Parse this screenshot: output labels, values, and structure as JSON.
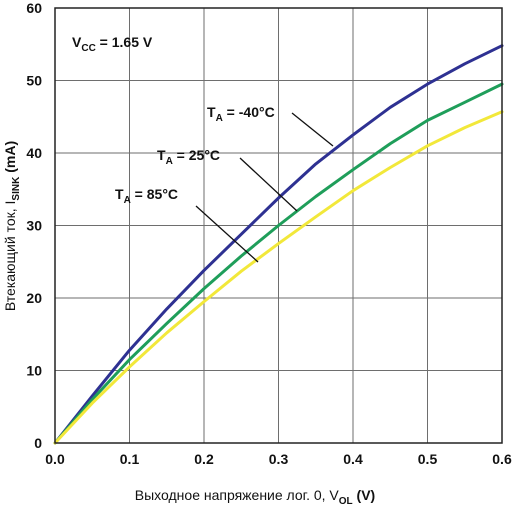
{
  "chart_data": {
    "type": "line",
    "xlabel": "Выходное напряжение лог. 0, V",
    "xlabel_sub": "OL",
    "xlabel_unit": " (V)",
    "ylabel": "Втекающий ток, I",
    "ylabel_sub": "SINK",
    "ylabel_unit": " (mA)",
    "xlim": [
      0,
      0.6
    ],
    "ylim": [
      0,
      60
    ],
    "xticks": [
      0.0,
      0.1,
      0.2,
      0.3,
      0.4,
      0.5,
      0.6
    ],
    "xtick_labels": [
      "0.0",
      "0.1",
      "0.2",
      "0.3",
      "0.4",
      "0.5",
      "0.6"
    ],
    "yticks": [
      0,
      10,
      20,
      30,
      40,
      50,
      60
    ],
    "ytick_labels": [
      "0",
      "10",
      "20",
      "30",
      "40",
      "50",
      "60"
    ],
    "grid": true,
    "annotation": {
      "main": "V",
      "sub": "CC",
      "rest": " = 1.65 V"
    },
    "series": [
      {
        "name": "T_A = -40°C",
        "label_main": "T",
        "label_sub": "A",
        "label_rest": " = -40°C",
        "color": "#2e3192",
        "x": [
          0,
          0.05,
          0.1,
          0.15,
          0.2,
          0.25,
          0.3,
          0.35,
          0.4,
          0.45,
          0.5,
          0.55,
          0.6
        ],
        "y": [
          0,
          6.5,
          12.8,
          18.5,
          23.8,
          28.8,
          33.8,
          38.5,
          42.5,
          46.3,
          49.5,
          52.3,
          54.8
        ]
      },
      {
        "name": "T_A = 25°C",
        "label_main": "T",
        "label_sub": "A",
        "label_rest": " = 25°C",
        "color": "#1f9e5a",
        "x": [
          0,
          0.05,
          0.1,
          0.15,
          0.2,
          0.25,
          0.3,
          0.35,
          0.4,
          0.45,
          0.5,
          0.55,
          0.6
        ],
        "y": [
          0,
          6.0,
          11.5,
          16.5,
          21.3,
          25.8,
          30.0,
          34.0,
          37.7,
          41.3,
          44.5,
          47.0,
          49.5
        ]
      },
      {
        "name": "T_A = 85°C",
        "label_main": "T",
        "label_sub": "A",
        "label_rest": " = 85°C",
        "color": "#f2e83a",
        "x": [
          0,
          0.05,
          0.1,
          0.15,
          0.2,
          0.25,
          0.3,
          0.35,
          0.4,
          0.45,
          0.5,
          0.55,
          0.6
        ],
        "y": [
          0,
          5.5,
          10.5,
          15.2,
          19.5,
          23.7,
          27.5,
          31.2,
          34.8,
          38.0,
          41.0,
          43.5,
          45.7
        ]
      }
    ]
  }
}
